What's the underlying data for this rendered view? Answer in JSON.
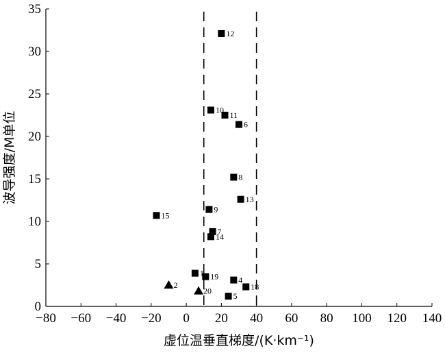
{
  "chart_data": {
    "type": "scatter",
    "title": "",
    "xlabel": "虚位温垂直梯度/(K·km⁻¹)",
    "ylabel": "波导强度/M单位",
    "xlim": [
      -80,
      140
    ],
    "ylim": [
      0,
      35
    ],
    "xticks": [
      "−80",
      "−60",
      "−40",
      "−20",
      "0",
      "20",
      "40",
      "60",
      "80",
      "100",
      "120",
      "140"
    ],
    "yticks": [
      "0",
      "5",
      "10",
      "15",
      "20",
      "25",
      "30",
      "35"
    ],
    "grid": false,
    "reference_lines_x": [
      10,
      40
    ],
    "points": [
      {
        "id": "12",
        "x": 20,
        "y": 32.1,
        "marker": "square"
      },
      {
        "id": "10",
        "x": 14,
        "y": 23.1,
        "marker": "square"
      },
      {
        "id": "11",
        "x": 22,
        "y": 22.5,
        "marker": "square"
      },
      {
        "id": "6",
        "x": 30,
        "y": 21.4,
        "marker": "square"
      },
      {
        "id": "8",
        "x": 27,
        "y": 15.2,
        "marker": "square"
      },
      {
        "id": "13",
        "x": 31,
        "y": 12.6,
        "marker": "square"
      },
      {
        "id": "9",
        "x": 13,
        "y": 11.4,
        "marker": "square"
      },
      {
        "id": "15",
        "x": -17,
        "y": 10.7,
        "marker": "square"
      },
      {
        "id": "7",
        "x": 15,
        "y": 8.8,
        "marker": "square"
      },
      {
        "id": "14",
        "x": 14,
        "y": 8.2,
        "marker": "square"
      },
      {
        "id": "1",
        "x": 5,
        "y": 3.9,
        "marker": "square"
      },
      {
        "id": "19",
        "x": 11,
        "y": 3.5,
        "marker": "square"
      },
      {
        "id": "4",
        "x": 27,
        "y": 3.1,
        "marker": "square"
      },
      {
        "id": "18",
        "x": 34,
        "y": 2.3,
        "marker": "square"
      },
      {
        "id": "5",
        "x": 24,
        "y": 1.2,
        "marker": "square"
      },
      {
        "id": "2",
        "x": -10,
        "y": 2.5,
        "marker": "triangle"
      },
      {
        "id": "20",
        "x": 7,
        "y": 1.8,
        "marker": "triangle"
      }
    ]
  }
}
